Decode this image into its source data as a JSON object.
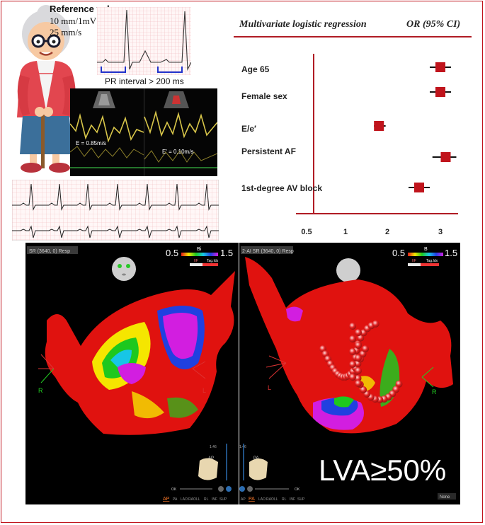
{
  "reference": {
    "title": "Reference values",
    "line1": "10 mm/1mV",
    "line2": "25 mm/s",
    "pr_label": "PR interval > 200 ms"
  },
  "echo": {
    "e_left": "E = 0.85m/s",
    "e_right": "E' = 0.10m/s"
  },
  "forest": {
    "header_title": "Multivariate logistic regression",
    "header_or": "OR (95% CI)",
    "colors": {
      "marker": "#c0141c",
      "axis": "#b01b24"
    },
    "x_axis": {
      "ticks": [
        "0.5",
        "1",
        "2",
        "3"
      ]
    }
  },
  "chart_data": {
    "type": "forest",
    "title": "Multivariate logistic regression",
    "ylabel": "",
    "xlabel": "",
    "x_ticks": [
      0.5,
      1,
      2,
      3
    ],
    "rows": [
      {
        "label": "Age 65",
        "or": 3.0,
        "ci_low": 2.8,
        "ci_high": 3.2
      },
      {
        "label": "Female sex",
        "or": 3.0,
        "ci_low": 2.8,
        "ci_high": 3.2
      },
      {
        "label": "E/e′",
        "or": 1.8,
        "ci_low": 1.68,
        "ci_high": 1.96
      },
      {
        "label": "Persistent AF",
        "or": 3.1,
        "ci_low": 2.85,
        "ci_high": 3.3
      },
      {
        "label": "1st-degree AV block",
        "or": 2.6,
        "ci_low": 2.4,
        "ci_high": 2.8
      }
    ]
  },
  "map_left": {
    "dropdown": "SR (3640, 0) Resp",
    "scale_min": "0.5",
    "scale_max": "1.5",
    "scale_unit": "Bi",
    "legend_a": "IIF",
    "legend_b": "Tag.Idx",
    "label_r": "R",
    "label_l": "L",
    "view": "AP",
    "slider_val": "1.46",
    "zoom": "OK",
    "view_tabs": [
      "AP",
      "PA",
      "LAO",
      "RAO",
      "LL",
      "RL",
      "INF",
      "SUP"
    ]
  },
  "map_right": {
    "dropdown": "2-AI SR (3640, 0) Resp",
    "scale_min": "0.5",
    "scale_max": "1.5",
    "scale_unit": "B",
    "legend_a": "IIF",
    "legend_b": "Tag.Idx",
    "label_l": "L",
    "label_r": "R",
    "view": "PA",
    "slider_val": "1.46",
    "zoom": "OK",
    "view_tabs": [
      "AP",
      "PA",
      "LAO",
      "RAO",
      "LL",
      "RL",
      "INF",
      "SUP"
    ],
    "none_button": "None",
    "lva_text": "LVA≥50%"
  }
}
